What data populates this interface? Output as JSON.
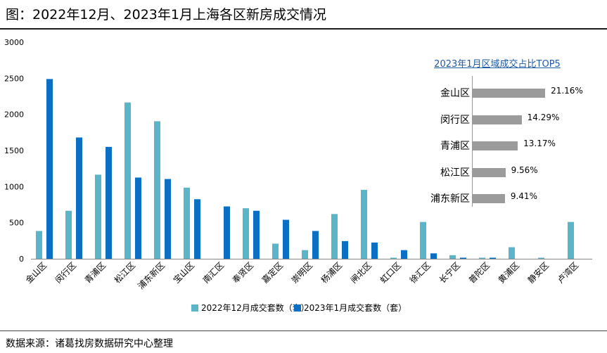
{
  "title": "图：2022年12月、2023年1月上海各区新房成交情况",
  "source": "数据来源：诸葛找房数据研究中心整理",
  "colors": {
    "dec": "#5bb5c8",
    "jan": "#0b6fc4",
    "inset_bar": "#9b9b9b",
    "inset_title": "#1f5aa6"
  },
  "chart_data": [
    {
      "type": "bar",
      "categories": [
        "金山区",
        "闵行区",
        "青浦区",
        "松江区",
        "浦东新区",
        "宝山区",
        "南汇区",
        "奉贤区",
        "嘉定区",
        "崇明区",
        "杨浦区",
        "闸北区",
        "虹口区",
        "徐汇区",
        "长宁区",
        "普陀区",
        "黄浦区",
        "静安区",
        "卢湾区"
      ],
      "series": [
        {
          "name": "2022年12月成交套数（套）",
          "values": [
            385,
            665,
            1165,
            2165,
            1905,
            985,
            0,
            700,
            210,
            120,
            620,
            955,
            15,
            510,
            50,
            15,
            160,
            15,
            510
          ]
        },
        {
          "name": "2023年1月成交套数（套）",
          "values": [
            2490,
            1680,
            1550,
            1125,
            1105,
            825,
            725,
            665,
            540,
            385,
            245,
            225,
            120,
            75,
            15,
            15,
            0,
            0,
            0
          ]
        }
      ],
      "ylim": [
        0,
        3000
      ],
      "yticks": [
        "0",
        "500",
        "1000",
        "1500",
        "2000",
        "2500",
        "3000"
      ],
      "legend": "bottom",
      "grid": false
    },
    {
      "type": "bar",
      "orientation": "horizontal",
      "title": "2023年1月区域成交占比TOP5",
      "categories": [
        "金山区",
        "闵行区",
        "青浦区",
        "松江区",
        "浦东新区"
      ],
      "values": [
        21.16,
        14.29,
        13.17,
        9.56,
        9.41
      ],
      "value_labels": [
        "21.16%",
        "14.29%",
        "13.17%",
        "9.56%",
        "9.41%"
      ],
      "xlim": [
        0,
        25
      ]
    }
  ]
}
